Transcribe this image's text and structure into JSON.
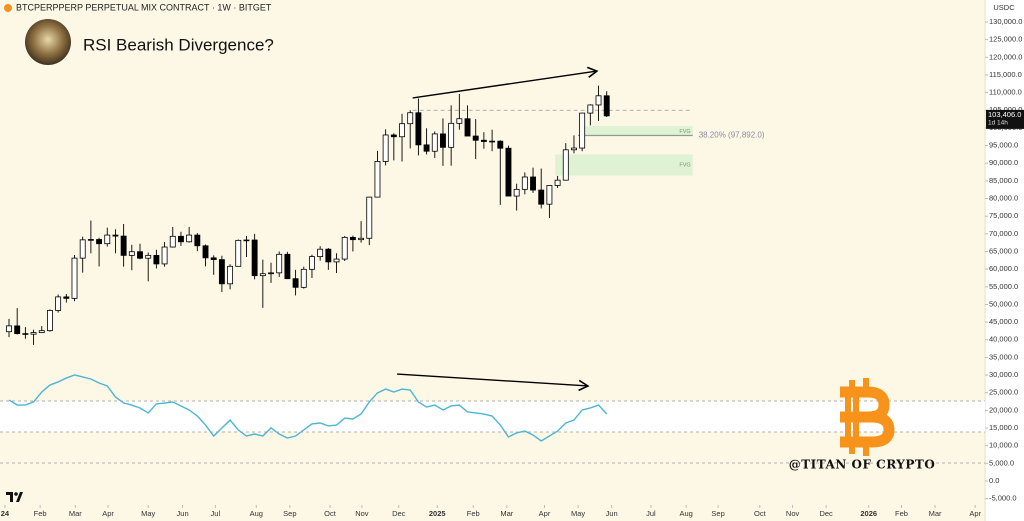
{
  "chart_data": [
    {
      "type": "candlestick",
      "symbol": "BTCPERPPERP PERPETUAL MIX CONTRACT · 1W · BITGET",
      "title": "RSI Bearish Divergence?",
      "currency": "USDC",
      "credit": "@TITAN OF CRYPTO",
      "up_color": "#ffffff",
      "down_color": "#000000",
      "wick_color": "#000000",
      "open": [
        42280,
        43930,
        41740,
        41580,
        42030,
        42580,
        48300,
        52140,
        51730,
        63120,
        68300,
        68400,
        67210,
        69650,
        69360,
        63900,
        64940,
        63100,
        63900,
        61480,
        66270,
        69300,
        67750,
        69650,
        66620,
        63200,
        62700,
        55850,
        60800,
        68150,
        68250,
        58150,
        58700,
        58950,
        64200,
        57300,
        54850,
        59950,
        63550,
        65650,
        62050,
        62850,
        69000,
        68350,
        68750,
        80400,
        90500,
        98000,
        97500,
        101200,
        104300,
        95200,
        93400,
        98300,
        94500,
        101300,
        102600,
        97700,
        96500,
        96150,
        96250,
        94250,
        80700,
        82600,
        86100,
        82400,
        78400,
        83700,
        85200,
        93800,
        94300,
        104200,
        106500,
        109100
      ],
      "high": [
        45900,
        48970,
        43580,
        42850,
        43880,
        48590,
        52820,
        52980,
        64000,
        69200,
        73780,
        68900,
        71760,
        71300,
        72800,
        66900,
        67200,
        64700,
        65500,
        67700,
        71950,
        70600,
        71950,
        70200,
        66990,
        63900,
        63800,
        61400,
        68400,
        69400,
        70000,
        62700,
        61800,
        65000,
        64900,
        59800,
        60700,
        64100,
        66500,
        66000,
        64500,
        69400,
        69500,
        73600,
        80500,
        93500,
        99600,
        98500,
        104000,
        105000,
        108350,
        99900,
        99000,
        102700,
        106400,
        109600,
        106400,
        102500,
        98800,
        99500,
        96500,
        95000,
        84200,
        87400,
        88750,
        88500,
        83600,
        86400,
        95700,
        97900,
        104300,
        106700,
        111980,
        110400
      ],
      "low": [
        40750,
        41500,
        40280,
        38550,
        41880,
        42260,
        47700,
        50520,
        50900,
        59000,
        64500,
        60770,
        66400,
        64500,
        60700,
        59700,
        62800,
        56550,
        60200,
        60700,
        66100,
        66600,
        67500,
        65100,
        60800,
        58400,
        53500,
        54300,
        60700,
        63450,
        57100,
        49050,
        56100,
        57800,
        57200,
        52550,
        54500,
        57500,
        62400,
        59800,
        58900,
        62300,
        65000,
        67500,
        66800,
        80300,
        89400,
        90800,
        90500,
        94200,
        92200,
        92500,
        91500,
        89250,
        89300,
        99500,
        97800,
        91200,
        94100,
        93400,
        78200,
        81400,
        76600,
        81200,
        81600,
        77200,
        74500,
        83000,
        85100,
        92800,
        93400,
        100700,
        102000,
        103100
      ],
      "close": [
        43930,
        41740,
        41580,
        42030,
        42580,
        48300,
        52140,
        51730,
        63120,
        68300,
        68400,
        67210,
        69650,
        69360,
        63900,
        64940,
        63100,
        63900,
        61480,
        66270,
        69300,
        67750,
        69650,
        66620,
        63200,
        62700,
        55850,
        60800,
        68150,
        68250,
        58150,
        58700,
        58950,
        64200,
        57300,
        54850,
        59950,
        63550,
        65650,
        62050,
        62850,
        69000,
        68350,
        68750,
        80400,
        90500,
        98000,
        97500,
        101200,
        104300,
        95200,
        93400,
        98300,
        94500,
        101300,
        102600,
        97700,
        96500,
        96150,
        96250,
        94250,
        80700,
        82600,
        86100,
        82400,
        78400,
        83700,
        85200,
        93800,
        94300,
        104200,
        106500,
        109100,
        103406
      ],
      "xlim": [
        -1.1,
        119.2
      ],
      "xticks": [
        {
          "value": -0.5,
          "label": "24"
        },
        {
          "value": 3.8,
          "label": "Feb"
        },
        {
          "value": 8.1,
          "label": "Mar"
        },
        {
          "value": 12.1,
          "label": "Apr"
        },
        {
          "value": 17.0,
          "label": "May"
        },
        {
          "value": 21.2,
          "label": "Jun"
        },
        {
          "value": 25.2,
          "label": "Jul"
        },
        {
          "value": 30.2,
          "label": "Aug"
        },
        {
          "value": 34.3,
          "label": "Sep"
        },
        {
          "value": 39.2,
          "label": "Oct"
        },
        {
          "value": 43.1,
          "label": "Nov"
        },
        {
          "value": 47.6,
          "label": "Dec"
        },
        {
          "value": 52.3,
          "label": "2025"
        },
        {
          "value": 56.7,
          "label": "Feb"
        },
        {
          "value": 60.8,
          "label": "Mar"
        },
        {
          "value": 65.4,
          "label": "Apr"
        },
        {
          "value": 69.5,
          "label": "May"
        },
        {
          "value": 73.6,
          "label": "Jun"
        },
        {
          "value": 78.4,
          "label": "Jul"
        },
        {
          "value": 82.7,
          "label": "Aug"
        },
        {
          "value": 86.6,
          "label": "Sep"
        },
        {
          "value": 91.7,
          "label": "Oct"
        },
        {
          "value": 95.7,
          "label": "Nov"
        },
        {
          "value": 99.8,
          "label": "Dec"
        },
        {
          "value": 105.0,
          "label": "2026"
        },
        {
          "value": 109.0,
          "label": "Feb"
        },
        {
          "value": 113.1,
          "label": "Mar"
        },
        {
          "value": 118.0,
          "label": "Apr"
        }
      ],
      "ylim": [
        -6800,
        136230
      ],
      "yticks": [
        {
          "value": 130000,
          "label": "130,000.0"
        },
        {
          "value": 125000,
          "label": "125,000.0"
        },
        {
          "value": 120000,
          "label": "120,000.0"
        },
        {
          "value": 115000,
          "label": "115,000.0"
        },
        {
          "value": 110000,
          "label": "110,000.0"
        },
        {
          "value": 105000,
          "label": "105,000.0"
        },
        {
          "value": 100000,
          "label": "100,000.0"
        },
        {
          "value": 95000,
          "label": "95,000.0"
        },
        {
          "value": 90000,
          "label": "90,000.0"
        },
        {
          "value": 85000,
          "label": "85,000.0"
        },
        {
          "value": 80000,
          "label": "80,000.0"
        },
        {
          "value": 75000,
          "label": "75,000.0"
        },
        {
          "value": 70000,
          "label": "70,000.0"
        },
        {
          "value": 65000,
          "label": "65,000.0"
        },
        {
          "value": 60000,
          "label": "60,000.0"
        },
        {
          "value": 55000,
          "label": "55,000.0"
        },
        {
          "value": 50000,
          "label": "50,000.0"
        },
        {
          "value": 45000,
          "label": "45,000.0"
        },
        {
          "value": 40000,
          "label": "40,000.0"
        },
        {
          "value": 35000,
          "label": "35,000.0"
        },
        {
          "value": 30000,
          "label": "30,000.0"
        },
        {
          "value": 25000,
          "label": "25,000.0"
        },
        {
          "value": 20000,
          "label": "20,000.0"
        },
        {
          "value": 15000,
          "label": "15,000.0"
        },
        {
          "value": 10000,
          "label": "10,000.0"
        },
        {
          "value": 5000,
          "label": "5,000.0"
        },
        {
          "value": 0,
          "label": "0.0"
        },
        {
          "value": -5000,
          "label": "-5,000.0"
        }
      ],
      "grid": false,
      "last_price": {
        "value": 103406,
        "label": "103,406.0"
      },
      "countdown": "1d 14h",
      "level": {
        "value": 105000,
        "x": [
          49.3,
          83.5
        ]
      },
      "fib": {
        "value": 97892,
        "label": "38.20% (97,892.0)",
        "x": [
          69.5,
          83.5
        ]
      },
      "fvg": [
        {
          "label": "FVG",
          "low": 97500,
          "high": 100500,
          "x": [
            70,
            83.5
          ]
        },
        {
          "label": "FVG",
          "low": 86500,
          "high": 92500,
          "x": [
            66.7,
            83.5
          ]
        }
      ],
      "arrow": {
        "x": [
          49.3,
          71.8
        ],
        "y": [
          108500,
          116100
        ]
      }
    },
    {
      "type": "line",
      "color": "#4cb5d6",
      "values": [
        70.6,
        67.4,
        67.4,
        69.4,
        75.8,
        80.3,
        82.3,
        84.8,
        86.8,
        85.5,
        84.2,
        81.6,
        79.7,
        72.6,
        68.7,
        67.4,
        65.5,
        62.3,
        68.1,
        68.7,
        69.4,
        66.8,
        64.2,
        60.3,
        54.5,
        47.4,
        52.6,
        57.7,
        51.3,
        47.4,
        48.7,
        47.4,
        52.6,
        48.7,
        46.1,
        47.4,
        51.3,
        55.2,
        55.8,
        53.9,
        54.5,
        59.0,
        58.4,
        61.6,
        69.4,
        75.2,
        77.7,
        75.8,
        77.7,
        77.1,
        69.4,
        66.1,
        67.4,
        64.2,
        66.8,
        67.4,
        62.9,
        62.3,
        61.6,
        60.3,
        54.5,
        46.8,
        49.4,
        50.6,
        48.1,
        44.2,
        47.4,
        50.6,
        55.8,
        57.7,
        64.2,
        65.5,
        67.4,
        61.6
      ],
      "ylim": [
        0,
        100
      ],
      "levels": [
        70,
        50,
        30
      ],
      "band": [
        50,
        70
      ],
      "arrow": {
        "x": [
          47.4,
          70.7
        ],
        "y": [
          87.4,
          79.7
        ]
      }
    }
  ]
}
